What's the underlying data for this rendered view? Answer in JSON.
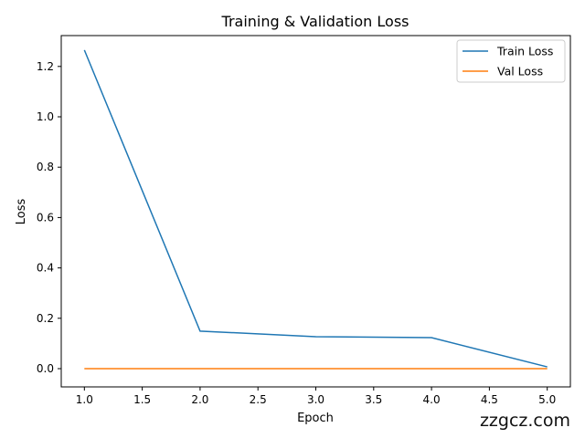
{
  "chart_data": {
    "type": "line",
    "title": "Training & Validation Loss",
    "xlabel": "Epoch",
    "ylabel": "Loss",
    "x": [
      1,
      2,
      3,
      4,
      5
    ],
    "series": [
      {
        "name": "Train Loss",
        "color": "#1f77b4",
        "values": [
          1.265,
          0.149,
          0.127,
          0.123,
          0.007
        ]
      },
      {
        "name": "Val Loss",
        "color": "#ff7f0e",
        "values": [
          0.0,
          0.0,
          0.0,
          0.0,
          0.0
        ]
      }
    ],
    "xlim": [
      0.8,
      5.2
    ],
    "ylim": [
      -0.0725,
      1.3225
    ],
    "xticks": [
      "1.0",
      "1.5",
      "2.0",
      "2.5",
      "3.0",
      "3.5",
      "4.0",
      "4.5",
      "5.0"
    ],
    "xtick_values": [
      1.0,
      1.5,
      2.0,
      2.5,
      3.0,
      3.5,
      4.0,
      4.5,
      5.0
    ],
    "yticks": [
      "0.0",
      "0.2",
      "0.4",
      "0.6",
      "0.8",
      "1.0",
      "1.2"
    ],
    "ytick_values": [
      0.0,
      0.2,
      0.4,
      0.6,
      0.8,
      1.0,
      1.2
    ],
    "grid": false,
    "legend": "top-right"
  },
  "watermark": "zzgcz.com"
}
